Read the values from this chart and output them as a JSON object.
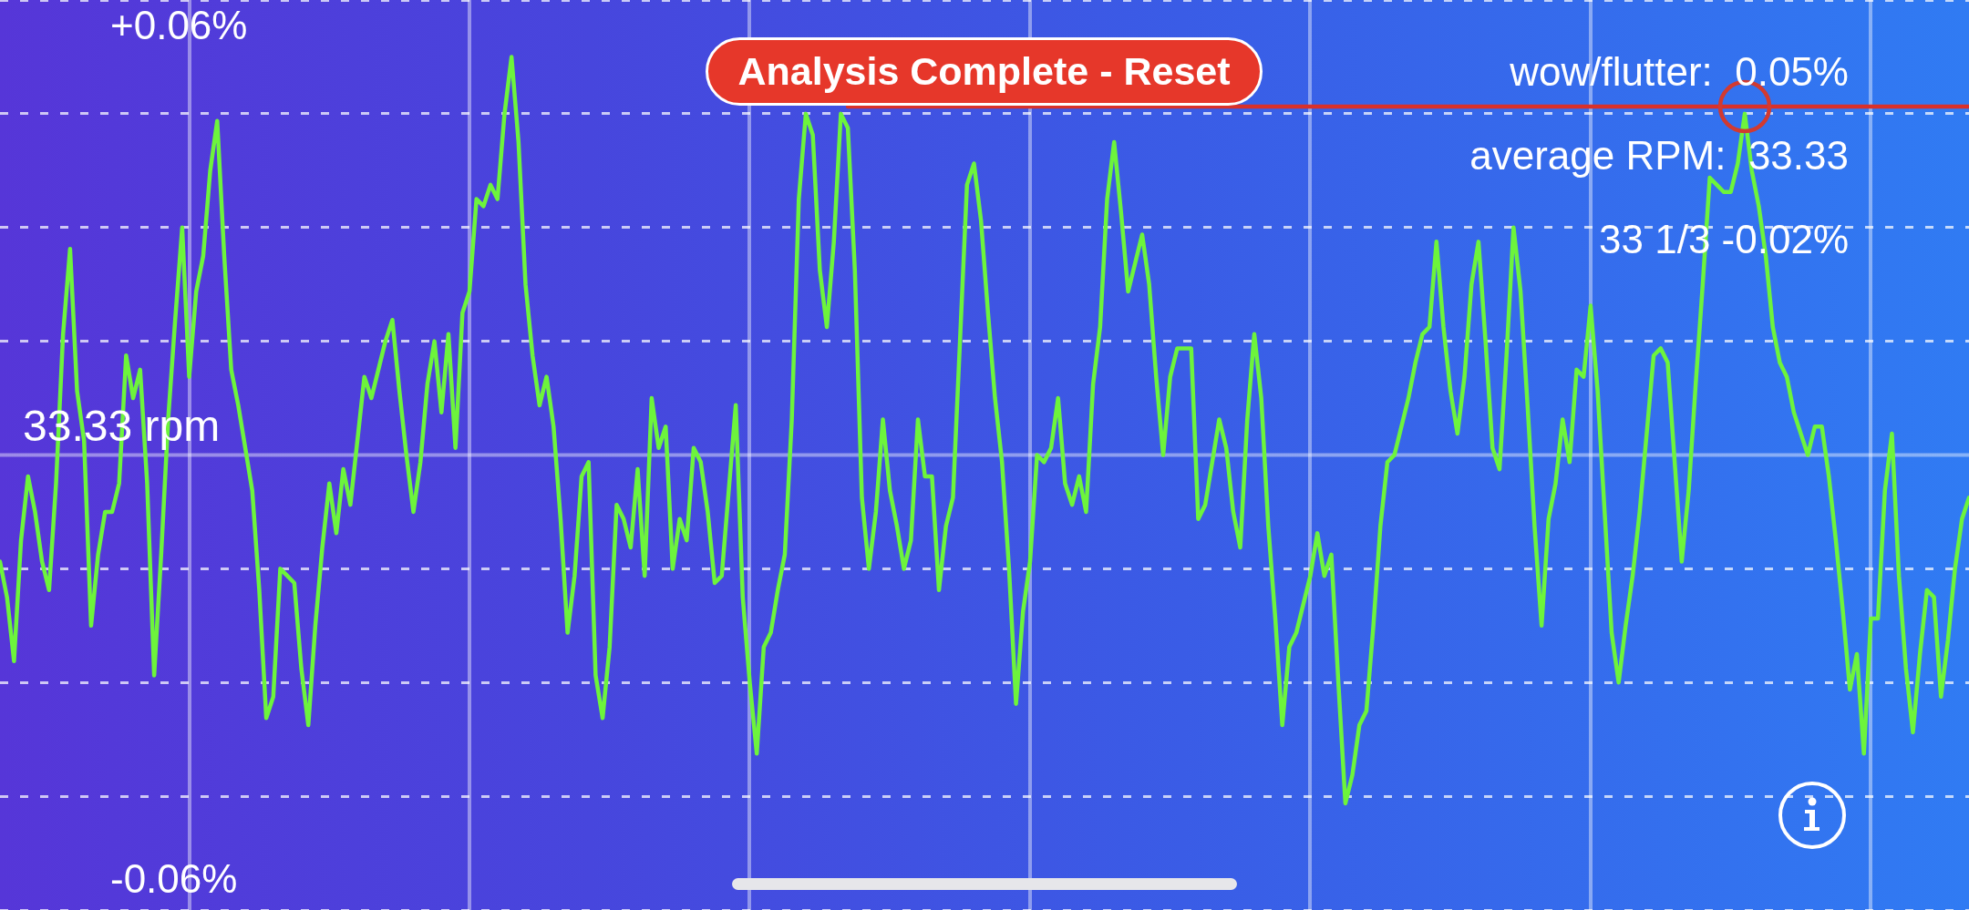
{
  "chart_data": {
    "type": "line",
    "categories": [
      null,
      null,
      null,
      null,
      null,
      null,
      null,
      null,
      null,
      null,
      null,
      null,
      null,
      null,
      null,
      null,
      null,
      null,
      null,
      null,
      null,
      null,
      null,
      null,
      null,
      null,
      null,
      null,
      null,
      null,
      null,
      null,
      null,
      null,
      null,
      null,
      null,
      null,
      null,
      null,
      null,
      null,
      null,
      null,
      null,
      null,
      null,
      null,
      null,
      null,
      null,
      null,
      null,
      null,
      null,
      null,
      null,
      null,
      null,
      null,
      null,
      null,
      null,
      null,
      null,
      null,
      null,
      null,
      null,
      null,
      null,
      null,
      null,
      null,
      null,
      null,
      null,
      null,
      null,
      null,
      null,
      null,
      null,
      null,
      null,
      null,
      null,
      null,
      null,
      null,
      null,
      null,
      null,
      null,
      null,
      null,
      null,
      null,
      null,
      null,
      null,
      null,
      null,
      null,
      null,
      null,
      null,
      null,
      null,
      null,
      null,
      null,
      null,
      null,
      null,
      null,
      null,
      null,
      null,
      null,
      null,
      null,
      null,
      null,
      null,
      null,
      null,
      null,
      null,
      null,
      null,
      null,
      null,
      null,
      null,
      null,
      null,
      null,
      null,
      null,
      null,
      null,
      null,
      null,
      null,
      null,
      null,
      null,
      null,
      null,
      null,
      null,
      null,
      null,
      null,
      null,
      null,
      null,
      null,
      null,
      null,
      null,
      null,
      null,
      null,
      null,
      null,
      null,
      null,
      null,
      null,
      null,
      null,
      null,
      null,
      null,
      null,
      null,
      null,
      null,
      null,
      null,
      null,
      null,
      null,
      null,
      null,
      null,
      null,
      null,
      null,
      null,
      null,
      null,
      null,
      null,
      null,
      null,
      null,
      null,
      null,
      null,
      null,
      null,
      null,
      null,
      null,
      null,
      null,
      null,
      null,
      null,
      null,
      null,
      null,
      null,
      null,
      null,
      null,
      null,
      null,
      null,
      null,
      null,
      null,
      null,
      null,
      null,
      null,
      null,
      null,
      null,
      null,
      null,
      null,
      null,
      null,
      null,
      null,
      null,
      null,
      null,
      null,
      null,
      null,
      null,
      null,
      null,
      null,
      null,
      null,
      null,
      null,
      null,
      null,
      null,
      null,
      null,
      null,
      null,
      null,
      null,
      null,
      null,
      null,
      null,
      null,
      null,
      null,
      null,
      null,
      null,
      null,
      null,
      null,
      null,
      null,
      null,
      null,
      null,
      null,
      null
    ],
    "ylim": [
      -0.064,
      0.064
    ],
    "yticks": [
      {
        "value": -0.064,
        "label": null
      },
      {
        "value": -0.06,
        "label": "-0.06%"
      },
      {
        "value": -0.048,
        "label": null
      },
      {
        "value": -0.032,
        "label": null
      },
      {
        "value": -0.016,
        "label": null
      },
      {
        "value": 0.016,
        "label": null
      },
      {
        "value": 0.032,
        "label": null
      },
      {
        "value": 0.048,
        "label": null
      },
      {
        "value": 0.06,
        "label": "+0.06%"
      },
      {
        "value": 0.064,
        "label": null
      }
    ],
    "tick_labels": "y",
    "grid": true,
    "ref_lines": [
      {
        "axis": "y",
        "value": 0,
        "label": "33.33 rpm"
      }
    ],
    "annotations": [
      "Analysis Complete - Reset",
      "wow/flutter:  0.05%",
      "average RPM:  33.33",
      "33 1/3 -0.02%"
    ],
    "series": [
      {
        "color": "#6df43c",
        "values": [
          -0.015,
          -0.02,
          -0.029,
          -0.012,
          -0.003,
          -0.008,
          -0.015,
          -0.019,
          -0.004,
          0.017,
          0.029,
          0.009,
          0.002,
          -0.024,
          -0.014,
          -0.008,
          -0.008,
          -0.004,
          0.014,
          0.008,
          0.012,
          -0.004,
          -0.031,
          -0.014,
          0.005,
          0.019,
          0.032,
          0.011,
          0.023,
          0.028,
          0.04,
          0.047,
          0.028,
          0.012,
          0.007,
          0.001,
          -0.005,
          -0.019,
          -0.037,
          -0.034,
          -0.016,
          -0.017,
          -0.018,
          -0.03,
          -0.038,
          -0.024,
          -0.013,
          -0.004,
          -0.011,
          -0.002,
          -0.007,
          0.002,
          0.011,
          0.008,
          0.012,
          0.016,
          0.019,
          0.009,
          0.0,
          -0.008,
          -0.001,
          0.01,
          0.016,
          0.006,
          0.017,
          0.001,
          0.02,
          0.023,
          0.036,
          0.035,
          0.038,
          0.036,
          0.048,
          0.056,
          0.044,
          0.024,
          0.014,
          0.007,
          0.011,
          0.004,
          -0.009,
          -0.025,
          -0.017,
          -0.003,
          -0.001,
          -0.031,
          -0.037,
          -0.027,
          -0.007,
          -0.009,
          -0.013,
          -0.002,
          -0.017,
          0.008,
          0.001,
          0.004,
          -0.016,
          -0.009,
          -0.012,
          0.001,
          -0.001,
          -0.008,
          -0.018,
          -0.017,
          -0.005,
          0.007,
          -0.02,
          -0.032,
          -0.042,
          -0.027,
          -0.025,
          -0.019,
          -0.014,
          0.005,
          0.036,
          0.048,
          0.045,
          0.026,
          0.018,
          0.03,
          0.048,
          0.046,
          0.026,
          -0.006,
          -0.016,
          -0.008,
          0.005,
          -0.005,
          -0.01,
          -0.016,
          -0.012,
          0.005,
          -0.003,
          -0.003,
          -0.019,
          -0.01,
          -0.006,
          0.016,
          0.038,
          0.041,
          0.033,
          0.02,
          0.008,
          -0.001,
          -0.016,
          -0.035,
          -0.022,
          -0.015,
          0.0,
          -0.001,
          0.001,
          0.008,
          -0.004,
          -0.007,
          -0.003,
          -0.008,
          0.01,
          0.018,
          0.036,
          0.044,
          0.034,
          0.023,
          0.027,
          0.031,
          0.024,
          0.011,
          0.0,
          0.011,
          0.015,
          0.015,
          0.015,
          -0.009,
          -0.007,
          -0.001,
          0.005,
          0.001,
          -0.008,
          -0.013,
          0.005,
          0.017,
          0.008,
          -0.01,
          -0.023,
          -0.038,
          -0.027,
          -0.025,
          -0.021,
          -0.017,
          -0.011,
          -0.017,
          -0.014,
          -0.032,
          -0.049,
          -0.045,
          -0.038,
          -0.036,
          -0.024,
          -0.01,
          -0.001,
          0.0,
          0.004,
          0.008,
          0.013,
          0.017,
          0.018,
          0.03,
          0.018,
          0.009,
          0.003,
          0.011,
          0.024,
          0.03,
          0.016,
          0.001,
          -0.002,
          0.014,
          0.032,
          0.023,
          0.007,
          -0.01,
          -0.024,
          -0.009,
          -0.004,
          0.005,
          -0.001,
          0.012,
          0.011,
          0.021,
          0.009,
          -0.008,
          -0.025,
          -0.032,
          -0.024,
          -0.017,
          -0.008,
          0.003,
          0.014,
          0.015,
          0.013,
          -0.001,
          -0.015,
          -0.005,
          0.01,
          0.024,
          0.039,
          0.038,
          0.037,
          0.037,
          0.041,
          0.048,
          0.04,
          0.035,
          0.028,
          0.018,
          0.013,
          0.011,
          0.006,
          0.003,
          0.0,
          0.004,
          0.004,
          -0.003,
          -0.012,
          -0.022,
          -0.033,
          -0.028,
          -0.042,
          -0.023,
          -0.023,
          -0.005,
          0.003,
          -0.017,
          -0.03,
          -0.039,
          -0.028,
          -0.019,
          -0.02,
          -0.034,
          -0.026,
          -0.016,
          -0.009,
          -0.006
        ]
      },
      {
        "type": "line",
        "color": "#d9302a",
        "values": [
          null,
          null,
          null,
          null,
          null,
          null,
          null,
          null,
          null,
          null,
          null,
          null,
          null,
          null,
          null,
          null,
          null,
          null,
          null,
          null,
          null,
          null,
          null,
          null,
          null,
          null,
          null,
          null,
          null,
          null,
          null,
          null,
          null,
          null,
          null,
          null,
          null,
          null,
          null,
          null,
          null,
          null,
          null,
          null,
          null,
          null,
          null,
          null,
          null,
          null,
          null,
          null,
          null,
          null,
          null,
          null,
          null,
          null,
          null,
          null,
          null,
          null,
          null,
          null,
          null,
          null,
          null,
          null,
          null,
          null,
          null,
          null,
          null,
          null,
          null,
          null,
          null,
          null,
          null,
          null,
          null,
          null,
          null,
          null,
          null,
          null,
          null,
          null,
          null,
          null,
          null,
          null,
          null,
          null,
          null,
          null,
          null,
          null,
          null,
          null,
          null,
          null,
          null,
          null,
          null,
          null,
          null,
          null,
          null,
          null,
          null,
          null,
          null,
          null,
          null,
          null,
          null,
          null,
          null,
          null,
          null,
          0.049,
          0.049,
          0.049,
          0.049,
          0.049,
          0.049,
          0.049,
          0.049,
          0.049,
          0.049,
          0.049,
          0.049,
          0.049,
          0.049,
          0.049,
          0.049,
          0.049,
          0.049,
          0.049,
          0.049,
          0.049,
          0.049,
          0.049,
          0.049,
          0.049,
          0.049,
          0.049,
          0.049,
          0.049,
          0.049,
          0.049,
          0.049,
          0.049,
          0.049,
          0.049,
          0.049,
          0.049,
          0.049,
          0.049,
          0.049,
          0.049,
          0.049,
          0.049,
          0.049,
          0.049,
          0.049,
          0.049,
          0.049,
          0.049,
          0.049,
          0.049,
          0.049,
          0.049,
          0.049,
          0.049,
          0.049,
          0.049,
          0.049,
          0.049,
          0.049,
          0.049,
          0.049,
          0.049,
          0.049,
          0.049,
          0.049,
          0.049,
          0.049,
          0.049,
          0.049,
          0.049,
          0.049,
          0.049,
          0.049,
          0.049,
          0.049,
          0.049,
          0.049,
          0.049,
          0.049,
          0.049,
          0.049,
          0.049,
          0.049,
          0.049,
          0.049,
          0.049,
          0.049,
          0.049,
          0.049,
          0.049,
          0.049,
          0.049,
          0.049,
          0.049,
          0.049,
          0.049,
          0.049,
          0.049,
          0.049,
          0.049,
          0.049,
          0.049,
          0.049,
          0.049,
          0.049,
          0.049,
          0.049,
          0.049,
          0.049,
          0.049,
          0.049,
          0.049,
          0.049,
          0.049,
          0.049,
          0.049,
          0.049,
          0.049,
          0.049,
          0.049,
          0.049,
          0.049,
          0.049,
          0.049,
          0.049,
          0.049,
          0.049,
          0.049,
          0.049,
          0.049,
          0.049,
          0.049,
          0.049,
          0.049,
          0.049,
          0.049,
          0.049,
          0.049,
          0.049,
          0.049,
          0.049,
          0.049,
          0.049,
          0.049,
          0.049,
          0.049,
          0.049,
          0.049,
          0.049,
          0.049,
          0.049,
          0.049,
          0.049,
          0.049,
          0.049,
          0.049,
          0.049,
          0.049,
          0.049,
          0.049
        ]
      },
      {
        "type": "scatter",
        "color": "#d23a30",
        "marker": "circle",
        "values": [
          null,
          null,
          null,
          null,
          null,
          null,
          null,
          null,
          null,
          null,
          null,
          null,
          null,
          null,
          null,
          null,
          null,
          null,
          null,
          null,
          null,
          null,
          null,
          null,
          null,
          null,
          null,
          null,
          null,
          null,
          null,
          null,
          null,
          null,
          null,
          null,
          null,
          null,
          null,
          null,
          null,
          null,
          null,
          null,
          null,
          null,
          null,
          null,
          null,
          null,
          null,
          null,
          null,
          null,
          null,
          null,
          null,
          null,
          null,
          null,
          null,
          null,
          null,
          null,
          null,
          null,
          null,
          null,
          null,
          null,
          null,
          null,
          null,
          null,
          null,
          null,
          null,
          null,
          null,
          null,
          null,
          null,
          null,
          null,
          null,
          null,
          null,
          null,
          null,
          null,
          null,
          null,
          null,
          null,
          null,
          null,
          null,
          null,
          null,
          null,
          null,
          null,
          null,
          null,
          null,
          null,
          null,
          null,
          null,
          null,
          null,
          null,
          null,
          null,
          null,
          null,
          null,
          null,
          null,
          null,
          null,
          null,
          null,
          null,
          null,
          null,
          null,
          null,
          null,
          null,
          null,
          null,
          null,
          null,
          null,
          null,
          null,
          null,
          null,
          null,
          null,
          null,
          null,
          null,
          null,
          null,
          null,
          null,
          null,
          null,
          null,
          null,
          null,
          null,
          null,
          null,
          null,
          null,
          null,
          null,
          null,
          null,
          null,
          null,
          null,
          null,
          null,
          null,
          null,
          null,
          null,
          null,
          null,
          null,
          null,
          null,
          null,
          null,
          null,
          null,
          null,
          null,
          null,
          null,
          null,
          null,
          null,
          null,
          null,
          null,
          null,
          null,
          null,
          null,
          null,
          null,
          null,
          null,
          null,
          null,
          null,
          null,
          null,
          null,
          null,
          null,
          null,
          null,
          null,
          null,
          null,
          null,
          null,
          null,
          null,
          null,
          null,
          null,
          null,
          null,
          null,
          null,
          null,
          null,
          null,
          null,
          null,
          null,
          null,
          null,
          null,
          null,
          null,
          null,
          null,
          null,
          null,
          null,
          null,
          null,
          null,
          null,
          null,
          null,
          null,
          null,
          null,
          null,
          null,
          0.049,
          null,
          null,
          null,
          null,
          null,
          null,
          null,
          null,
          null,
          null,
          null,
          null,
          null,
          null,
          null,
          null,
          null,
          null,
          null,
          null,
          null,
          null,
          null,
          null,
          null,
          null,
          null,
          null,
          null,
          null,
          null,
          null
        ]
      }
    ]
  }
}
